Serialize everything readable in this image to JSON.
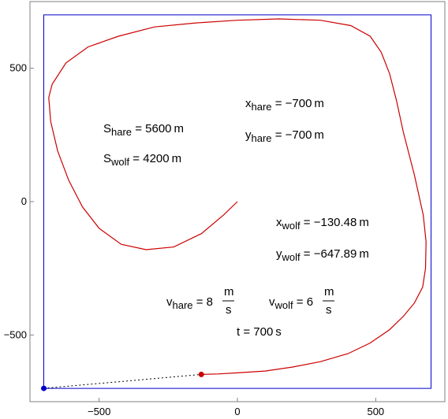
{
  "chart_data": {
    "type": "line",
    "xlim": [
      -750,
      750
    ],
    "ylim": [
      -750,
      750
    ],
    "x_ticks": [
      -500,
      0,
      500
    ],
    "y_ticks": [
      500,
      0,
      -500
    ],
    "x_tick_labels": [
      "−500",
      "0",
      "500"
    ],
    "y_tick_labels": [
      "500",
      "0",
      "−500"
    ],
    "grid": false,
    "legend": "none",
    "colors": {
      "wolf_path": "#cc0000",
      "hare_path": "#0000cc",
      "sight_line": "#000000",
      "axes": "#808080"
    },
    "hare_path": {
      "x": [
        -700,
        700,
        700,
        -700,
        -700
      ],
      "y": [
        -700,
        -700,
        700,
        700,
        -700
      ]
    },
    "wolf_path": {
      "x": [
        0,
        -50,
        -130,
        -230,
        -330,
        -420,
        -500,
        -560,
        -610,
        -650,
        -675,
        -682,
        -670,
        -620,
        -540,
        -430,
        -300,
        -150,
        0,
        150,
        300,
        410,
        480,
        520,
        550,
        575,
        600,
        640,
        672,
        682,
        680,
        670,
        640,
        600,
        550,
        480,
        400,
        300,
        200,
        100,
        0,
        -70,
        -130.48
      ],
      "y": [
        0,
        -50,
        -120,
        -170,
        -180,
        -160,
        -100,
        -20,
        80,
        190,
        300,
        390,
        440,
        520,
        580,
        620,
        655,
        670,
        680,
        685,
        680,
        660,
        620,
        560,
        480,
        380,
        260,
        100,
        -50,
        -150,
        -250,
        -320,
        -380,
        -430,
        -480,
        -530,
        -570,
        -600,
        -620,
        -635,
        -642,
        -646,
        -647.89
      ]
    },
    "hare_position": {
      "x": -700,
      "y": -700
    },
    "wolf_position": {
      "x": -130.48,
      "y": -647.89
    }
  },
  "annotations": {
    "s_hare": {
      "var": "S",
      "sub": "hare",
      "text": " = 5600 m"
    },
    "s_wolf": {
      "var": "S",
      "sub": "wolf",
      "text": " = 4200 m"
    },
    "x_hare": {
      "var": "x",
      "sub": "hare",
      "text": " = −700 m"
    },
    "y_hare": {
      "var": "y",
      "sub": "hare",
      "text": " = −700 m"
    },
    "x_wolf": {
      "var": "x",
      "sub": "wolf",
      "text": " = −130.48 m"
    },
    "y_wolf": {
      "var": "y",
      "sub": "wolf",
      "text": " = −647.89 m"
    },
    "v_hare": {
      "var": "v",
      "sub": "hare",
      "text": " = 8",
      "num": "m",
      "den": "s"
    },
    "v_wolf": {
      "var": "v",
      "sub": "wolf",
      "text": " = 6",
      "num": "m",
      "den": "s"
    },
    "t": {
      "text": "t = 700 s"
    }
  }
}
